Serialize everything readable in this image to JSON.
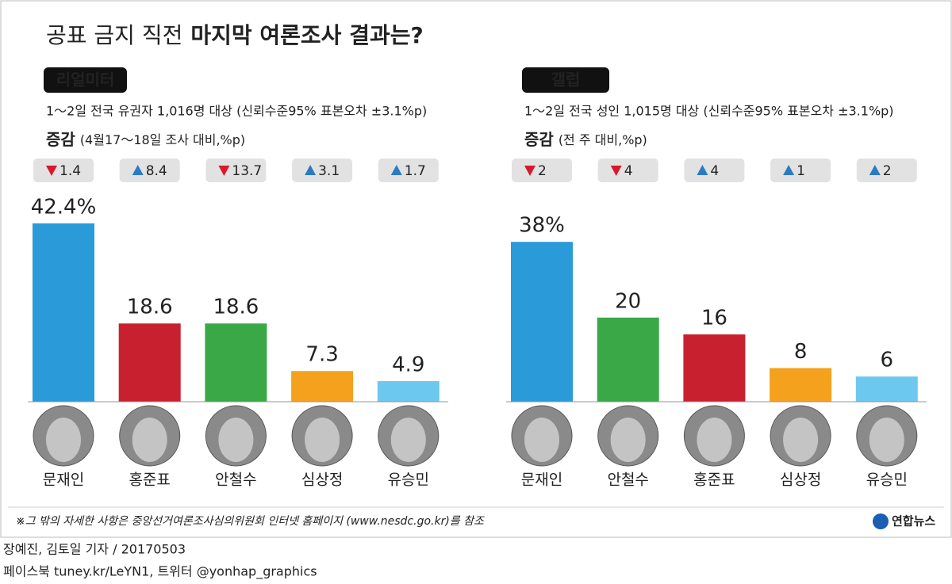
{
  "header": {
    "lead": "공표 금지 직전",
    "main": "마지막 여론조사 결과는?"
  },
  "chart_data": [
    {
      "type": "bar",
      "title": "리얼미터",
      "subtitle": "1～2일 전국 유권자 1,016명 대상 (신뢰수준95% 표본오차 ±3.1%p)",
      "change_title": "증감",
      "change_note": "(4월17～18일 조사 대비,%p)",
      "categories": [
        "문재인",
        "홍준표",
        "안철수",
        "심상정",
        "유승민"
      ],
      "values": [
        42.4,
        18.6,
        18.6,
        7.3,
        4.9
      ],
      "value_labels": [
        "42.4%",
        "18.6",
        "18.6",
        "7.3",
        "4.9"
      ],
      "colors": [
        "#2b9ad9",
        "#c8202f",
        "#3aa846",
        "#f4a11d",
        "#6cc8ef"
      ],
      "changes": [
        -1.4,
        8.4,
        -13.7,
        3.1,
        1.7
      ],
      "change_labels": [
        "1.4",
        "8.4",
        "13.7",
        "3.1",
        "1.7"
      ]
    },
    {
      "type": "bar",
      "title": "갤럽",
      "subtitle": "1～2일 전국 성인 1,015명 대상 (신뢰수준95% 표본오차 ±3.1%p)",
      "change_title": "증감",
      "change_note": "(전 주 대비,%p)",
      "categories": [
        "문재인",
        "안철수",
        "홍준표",
        "심상정",
        "유승민"
      ],
      "values": [
        38,
        20,
        16,
        8,
        6
      ],
      "value_labels": [
        "38%",
        "20",
        "16",
        "8",
        "6"
      ],
      "colors": [
        "#2b9ad9",
        "#3aa846",
        "#c8202f",
        "#f4a11d",
        "#6cc8ef"
      ],
      "changes": [
        -2,
        -4,
        4,
        1,
        2
      ],
      "change_labels": [
        "2",
        "4",
        "4",
        "1",
        "2"
      ]
    }
  ],
  "footnote": "※그 밖의 자세한 사항은 중앙선거여론조사심의위원회 인터넷 홈페이지 (www.nesdc.go.kr)를 참조",
  "logo": "연합뉴스",
  "credits": [
    "장예진, 김토일 기자 / 20170503",
    "페이스북 tuney.kr/LeYN1, 트위터 @yonhap_graphics"
  ]
}
